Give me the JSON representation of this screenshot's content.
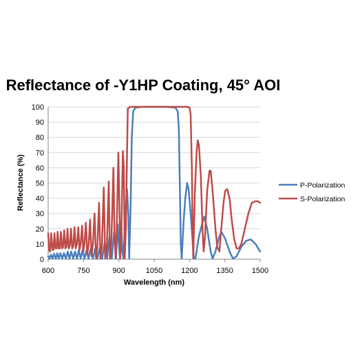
{
  "chart_data": {
    "type": "line",
    "title": "Reflectance of -Y1HP Coating, 45° AOI",
    "xlabel": "Wavelength (nm)",
    "ylabel": "Reflectance (%)",
    "xlim": [
      600,
      1500
    ],
    "ylim": [
      0,
      100
    ],
    "x_ticks": [
      600,
      750,
      900,
      1050,
      1200,
      1350,
      1500
    ],
    "y_ticks": [
      0,
      10,
      20,
      30,
      40,
      50,
      60,
      70,
      80,
      90,
      100
    ],
    "grid": "horizontal",
    "legend_position": "right",
    "series": [
      {
        "name": "P-Polarization",
        "color": "#4a7ebb",
        "points": [
          [
            600,
            2
          ],
          [
            605,
            0.3
          ],
          [
            612,
            3
          ],
          [
            618,
            0.3
          ],
          [
            625,
            3.5
          ],
          [
            632,
            0.3
          ],
          [
            639,
            4
          ],
          [
            645,
            0.3
          ],
          [
            652,
            4
          ],
          [
            660,
            0.3
          ],
          [
            667,
            4
          ],
          [
            675,
            0.3
          ],
          [
            683,
            5
          ],
          [
            690,
            0.3
          ],
          [
            698,
            5
          ],
          [
            706,
            0.3
          ],
          [
            714,
            5
          ],
          [
            722,
            0.3
          ],
          [
            730,
            6
          ],
          [
            738,
            0.3
          ],
          [
            746,
            6
          ],
          [
            754,
            0.3
          ],
          [
            763,
            6
          ],
          [
            771,
            0.3
          ],
          [
            781,
            7
          ],
          [
            790,
            0.3
          ],
          [
            800,
            7
          ],
          [
            809,
            0.3
          ],
          [
            820,
            8
          ],
          [
            829,
            0.3
          ],
          [
            840,
            11
          ],
          [
            850,
            0.3
          ],
          [
            860,
            15
          ],
          [
            870,
            0.3
          ],
          [
            880,
            18
          ],
          [
            888,
            0.3
          ],
          [
            895,
            23
          ],
          [
            900,
            10
          ],
          [
            905,
            0.3
          ],
          [
            910,
            24
          ],
          [
            915,
            5
          ],
          [
            920,
            0.3
          ],
          [
            927,
            30
          ],
          [
            935,
            46
          ],
          [
            940,
            30
          ],
          [
            944,
            0.3
          ],
          [
            950,
            35
          ],
          [
            955,
            80
          ],
          [
            961,
            97
          ],
          [
            970,
            99.5
          ],
          [
            1000,
            100
          ],
          [
            1050,
            100
          ],
          [
            1100,
            100
          ],
          [
            1140,
            99.5
          ],
          [
            1150,
            97
          ],
          [
            1155,
            85
          ],
          [
            1160,
            40
          ],
          [
            1163,
            10
          ],
          [
            1167,
            0.3
          ],
          [
            1175,
            25
          ],
          [
            1182,
            40
          ],
          [
            1190,
            50
          ],
          [
            1196,
            46
          ],
          [
            1205,
            30
          ],
          [
            1212,
            15
          ],
          [
            1218,
            1
          ],
          [
            1225,
            0.3
          ],
          [
            1240,
            15
          ],
          [
            1255,
            24
          ],
          [
            1263,
            28
          ],
          [
            1275,
            20
          ],
          [
            1290,
            5
          ],
          [
            1298,
            0.3
          ],
          [
            1310,
            5
          ],
          [
            1325,
            14
          ],
          [
            1335,
            18
          ],
          [
            1350,
            14
          ],
          [
            1370,
            5
          ],
          [
            1385,
            0.3
          ],
          [
            1400,
            2
          ],
          [
            1420,
            8
          ],
          [
            1440,
            12
          ],
          [
            1460,
            13
          ],
          [
            1480,
            10
          ],
          [
            1500,
            5
          ]
        ]
      },
      {
        "name": "S-Polarization",
        "color": "#be4b48",
        "points": [
          [
            600,
            17
          ],
          [
            604,
            6
          ],
          [
            608,
            5
          ],
          [
            613,
            17
          ],
          [
            618,
            6
          ],
          [
            622,
            6
          ],
          [
            627,
            17
          ],
          [
            631,
            7
          ],
          [
            636,
            7
          ],
          [
            640,
            18
          ],
          [
            645,
            7
          ],
          [
            649,
            7
          ],
          [
            654,
            18
          ],
          [
            659,
            7
          ],
          [
            663,
            8
          ],
          [
            668,
            19
          ],
          [
            673,
            7
          ],
          [
            677,
            8
          ],
          [
            682,
            20
          ],
          [
            687,
            7
          ],
          [
            692,
            9
          ],
          [
            697,
            20
          ],
          [
            702,
            7
          ],
          [
            707,
            9
          ],
          [
            712,
            21
          ],
          [
            717,
            7
          ],
          [
            722,
            10
          ],
          [
            728,
            21
          ],
          [
            733,
            6
          ],
          [
            738,
            10
          ],
          [
            744,
            22
          ],
          [
            749,
            5
          ],
          [
            754,
            10
          ],
          [
            760,
            24
          ],
          [
            766,
            3
          ],
          [
            772,
            10
          ],
          [
            778,
            26
          ],
          [
            784,
            2
          ],
          [
            790,
            10
          ],
          [
            797,
            30
          ],
          [
            803,
            0.5
          ],
          [
            809,
            8
          ],
          [
            816,
            37
          ],
          [
            822,
            0.5
          ],
          [
            828,
            8
          ],
          [
            836,
            47
          ],
          [
            842,
            0.5
          ],
          [
            849,
            8
          ],
          [
            857,
            51
          ],
          [
            862,
            0.5
          ],
          [
            868,
            10
          ],
          [
            877,
            60
          ],
          [
            881,
            20
          ],
          [
            886,
            0.5
          ],
          [
            891,
            20
          ],
          [
            898,
            70
          ],
          [
            902,
            40
          ],
          [
            906,
            0.5
          ],
          [
            910,
            12
          ],
          [
            917,
            71
          ],
          [
            921,
            60
          ],
          [
            925,
            0.5
          ],
          [
            930,
            20
          ],
          [
            935,
            70
          ],
          [
            938,
            99
          ],
          [
            950,
            100
          ],
          [
            1000,
            100
          ],
          [
            1050,
            100
          ],
          [
            1100,
            100
          ],
          [
            1150,
            100
          ],
          [
            1190,
            100
          ],
          [
            1200,
            99.5
          ],
          [
            1205,
            95
          ],
          [
            1210,
            60
          ],
          [
            1213,
            20
          ],
          [
            1216,
            0.5
          ],
          [
            1223,
            45
          ],
          [
            1230,
            70
          ],
          [
            1235,
            78
          ],
          [
            1240,
            75
          ],
          [
            1248,
            55
          ],
          [
            1255,
            20
          ],
          [
            1260,
            5
          ],
          [
            1266,
            15
          ],
          [
            1275,
            45
          ],
          [
            1285,
            58
          ],
          [
            1290,
            58
          ],
          [
            1298,
            45
          ],
          [
            1310,
            20
          ],
          [
            1318,
            8
          ],
          [
            1327,
            5
          ],
          [
            1335,
            20
          ],
          [
            1345,
            38
          ],
          [
            1352,
            45
          ],
          [
            1360,
            46
          ],
          [
            1370,
            40
          ],
          [
            1380,
            25
          ],
          [
            1390,
            13
          ],
          [
            1400,
            7
          ],
          [
            1410,
            7
          ],
          [
            1420,
            10
          ],
          [
            1435,
            20
          ],
          [
            1450,
            30
          ],
          [
            1465,
            37
          ],
          [
            1480,
            38
          ],
          [
            1490,
            38
          ],
          [
            1500,
            37
          ]
        ]
      }
    ]
  }
}
